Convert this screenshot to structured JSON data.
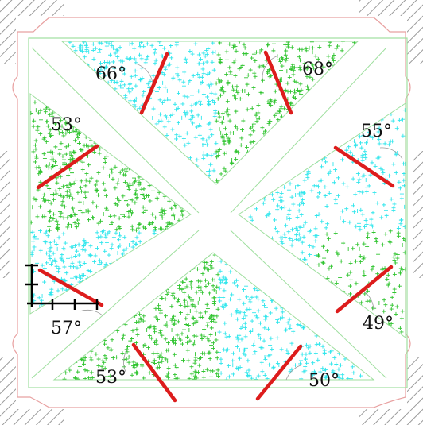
{
  "colors": {
    "hatch": "#9a9a9a",
    "outline_red": "#e8a0a0",
    "outline_green": "#9fdf9f",
    "marker_cyan": "#2fe6ec",
    "marker_green": "#2fc42f",
    "grain_line": "#dd1c1c",
    "scale_bar": "#000000"
  },
  "regions": [
    {
      "id": "top",
      "color": "mixed",
      "angle_label": "66°",
      "angle_label_2": "68°"
    },
    {
      "id": "left",
      "angle_label": "53°",
      "angle_label_2": "57°"
    },
    {
      "id": "right",
      "angle_label": "55°",
      "angle_label_2": "49°"
    },
    {
      "id": "bottom",
      "angle_label": "53°",
      "angle_label_2": "50°"
    }
  ],
  "labels": {
    "top_left": "66°",
    "top_right": "68°",
    "left_top": "53°",
    "left_bottom": "57°",
    "right_top": "55°",
    "right_bottom": "49°",
    "bottom_left": "53°",
    "bottom_right": "50°"
  }
}
